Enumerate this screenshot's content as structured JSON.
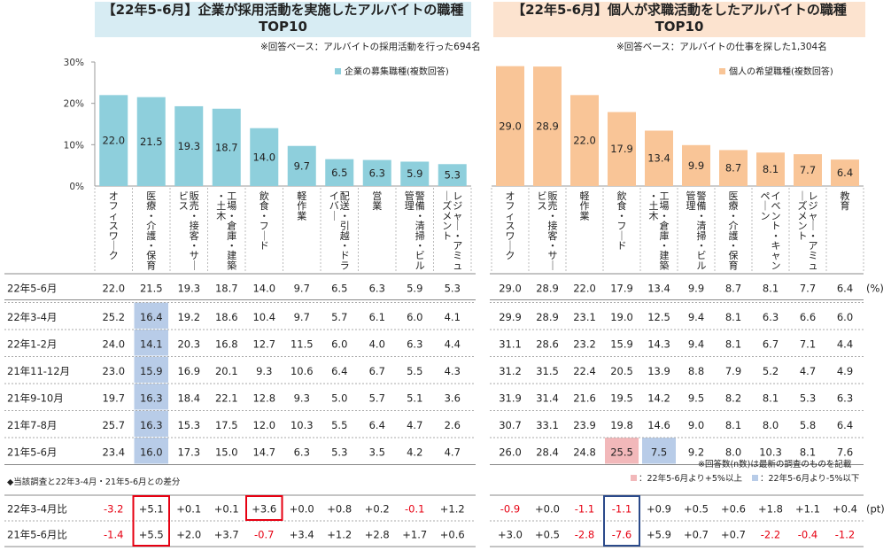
{
  "unit_pct": "(%)",
  "unit_pt": "(pt)",
  "diff_title": "◆当該調査と22年3-4月・21年5-6月との差分",
  "highlight_note": "※回答数(n数)は最新の調査のものを記載",
  "highlight_legend": [
    {
      "label": "：22年5-6月より+5%以上",
      "color": "#f2b8ba"
    },
    {
      "label": "：22年5-6月より-5%以下",
      "color": "#b8cce8"
    }
  ],
  "row_labels": [
    "22年5-6月",
    "22年3-4月",
    "22年1-2月",
    "21年11-12月",
    "21年9-10月",
    "21年7-8月",
    "21年5-6月"
  ],
  "diff_labels": [
    "22年3-4月比",
    "21年5-6月比"
  ],
  "chart_data": [
    {
      "type": "bar",
      "title": "【22年5-6月】企業が採用活動を実施したアルバイトの職種 TOP10",
      "title_line1": "【22年5-6月】企業が採用活動を実施したアルバイトの職種",
      "title_line2": "TOP10",
      "subtitle": "※回答ベース：アルバイトの採用活動を行った694名",
      "legend": "企業の募集職種(複数回答)",
      "color": "#8ecfdc",
      "ylim": [
        0,
        30
      ],
      "yticks": [
        "0%",
        "10%",
        "20%",
        "30%"
      ],
      "categories": [
        "オフィスワーク",
        "医療・介護・保育",
        "販売・接客・サービス",
        "工場・倉庫・建築・土木",
        "飲食・フード",
        "軽作業",
        "配送・引越・ドライバー",
        "営業",
        "警備・清掃・ビル管理",
        "レジャー・アミューズメント"
      ],
      "values": [
        22.0,
        21.5,
        19.3,
        18.7,
        14.0,
        9.7,
        6.5,
        6.3,
        5.9,
        5.3
      ],
      "table": [
        [
          "22.0",
          "21.5",
          "19.3",
          "18.7",
          "14.0",
          "9.7",
          "6.5",
          "6.3",
          "5.9",
          "5.3"
        ],
        [
          "25.2",
          "16.4",
          "19.2",
          "18.6",
          "10.4",
          "9.7",
          "5.7",
          "6.1",
          "6.0",
          "4.1"
        ],
        [
          "24.0",
          "14.1",
          "20.3",
          "16.8",
          "12.7",
          "11.5",
          "6.0",
          "4.0",
          "6.3",
          "4.4"
        ],
        [
          "23.0",
          "15.9",
          "16.9",
          "20.1",
          "9.3",
          "10.6",
          "6.4",
          "6.7",
          "5.5",
          "4.3"
        ],
        [
          "19.7",
          "16.3",
          "18.4",
          "22.1",
          "12.8",
          "9.3",
          "5.0",
          "5.7",
          "5.1",
          "3.6"
        ],
        [
          "25.7",
          "16.3",
          "15.3",
          "17.5",
          "12.0",
          "10.3",
          "5.5",
          "6.4",
          "4.7",
          "2.6"
        ],
        [
          "23.4",
          "16.0",
          "17.3",
          "15.0",
          "14.7",
          "6.3",
          "5.3",
          "3.5",
          "4.2",
          "4.7"
        ]
      ],
      "highlights": [
        {
          "row": 1,
          "col": 1,
          "type": "minus"
        },
        {
          "row": 2,
          "col": 1,
          "type": "minus"
        },
        {
          "row": 3,
          "col": 1,
          "type": "minus"
        },
        {
          "row": 4,
          "col": 1,
          "type": "minus"
        },
        {
          "row": 5,
          "col": 1,
          "type": "minus"
        },
        {
          "row": 6,
          "col": 1,
          "type": "minus"
        }
      ],
      "diff": [
        [
          "-3.2",
          "+5.1",
          "+0.1",
          "+0.1",
          "+3.6",
          "+0.0",
          "+0.8",
          "+0.2",
          "-0.1",
          "+1.2"
        ],
        [
          "-1.4",
          "+5.5",
          "+2.0",
          "+3.7",
          "-0.7",
          "+3.4",
          "+1.2",
          "+2.8",
          "+1.7",
          "+0.6"
        ]
      ],
      "diff_boxes": [
        {
          "col": 1,
          "rows": [
            0,
            1
          ],
          "color": "#e60012"
        },
        {
          "col": 4,
          "rows": [
            0
          ],
          "color": "#e60012"
        }
      ]
    },
    {
      "type": "bar",
      "title": "【22年5-6月】個人が求職活動をしたアルバイトの職種 TOP10",
      "title_line1": "【22年5-6月】個人が求職活動をしたアルバイトの職種",
      "title_line2": "TOP10",
      "subtitle": "※回答ベース：アルバイトの仕事を探した1,304名",
      "legend": "個人の希望職種(複数回答)",
      "color": "#f9c597",
      "ylim": [
        0,
        30
      ],
      "categories": [
        "オフィスワーク",
        "販売・接客・サービス",
        "軽作業",
        "飲食・フード",
        "工場・倉庫・建築・土木",
        "警備・清掃・ビル管理",
        "医療・介護・保育",
        "イベント・キャンペーン",
        "レジャー・アミューズメント",
        "教育"
      ],
      "values": [
        29.0,
        28.9,
        22.0,
        17.9,
        13.4,
        9.9,
        8.7,
        8.1,
        7.7,
        6.4
      ],
      "table": [
        [
          "29.0",
          "28.9",
          "22.0",
          "17.9",
          "13.4",
          "9.9",
          "8.7",
          "8.1",
          "7.7",
          "6.4"
        ],
        [
          "29.9",
          "28.9",
          "23.1",
          "19.0",
          "12.5",
          "9.4",
          "8.1",
          "6.3",
          "6.6",
          "6.0"
        ],
        [
          "31.1",
          "28.6",
          "23.2",
          "15.9",
          "14.3",
          "9.4",
          "8.1",
          "6.7",
          "7.1",
          "4.4"
        ],
        [
          "31.2",
          "31.5",
          "22.4",
          "20.5",
          "13.9",
          "8.8",
          "7.9",
          "5.2",
          "4.7",
          "4.9"
        ],
        [
          "31.9",
          "31.4",
          "21.6",
          "19.5",
          "14.2",
          "9.5",
          "8.2",
          "8.1",
          "5.3",
          "6.3"
        ],
        [
          "30.7",
          "33.1",
          "23.9",
          "19.8",
          "14.6",
          "9.0",
          "8.1",
          "8.0",
          "5.8",
          "6.4"
        ],
        [
          "26.0",
          "28.4",
          "24.8",
          "25.5",
          "7.5",
          "9.2",
          "8.0",
          "10.3",
          "8.1",
          "7.6"
        ]
      ],
      "highlights": [
        {
          "row": 6,
          "col": 3,
          "type": "plus"
        },
        {
          "row": 6,
          "col": 4,
          "type": "minus"
        }
      ],
      "diff": [
        [
          "-0.9",
          "+0.0",
          "-1.1",
          "-1.1",
          "+0.9",
          "+0.5",
          "+0.6",
          "+1.8",
          "+1.1",
          "+0.4"
        ],
        [
          "+3.0",
          "+0.5",
          "-2.8",
          "-7.6",
          "+5.9",
          "+0.7",
          "+0.7",
          "-2.2",
          "-0.4",
          "-1.2"
        ]
      ],
      "diff_boxes": [
        {
          "col": 3,
          "rows": [
            0,
            1
          ],
          "color": "#2b4a8a"
        }
      ]
    }
  ]
}
